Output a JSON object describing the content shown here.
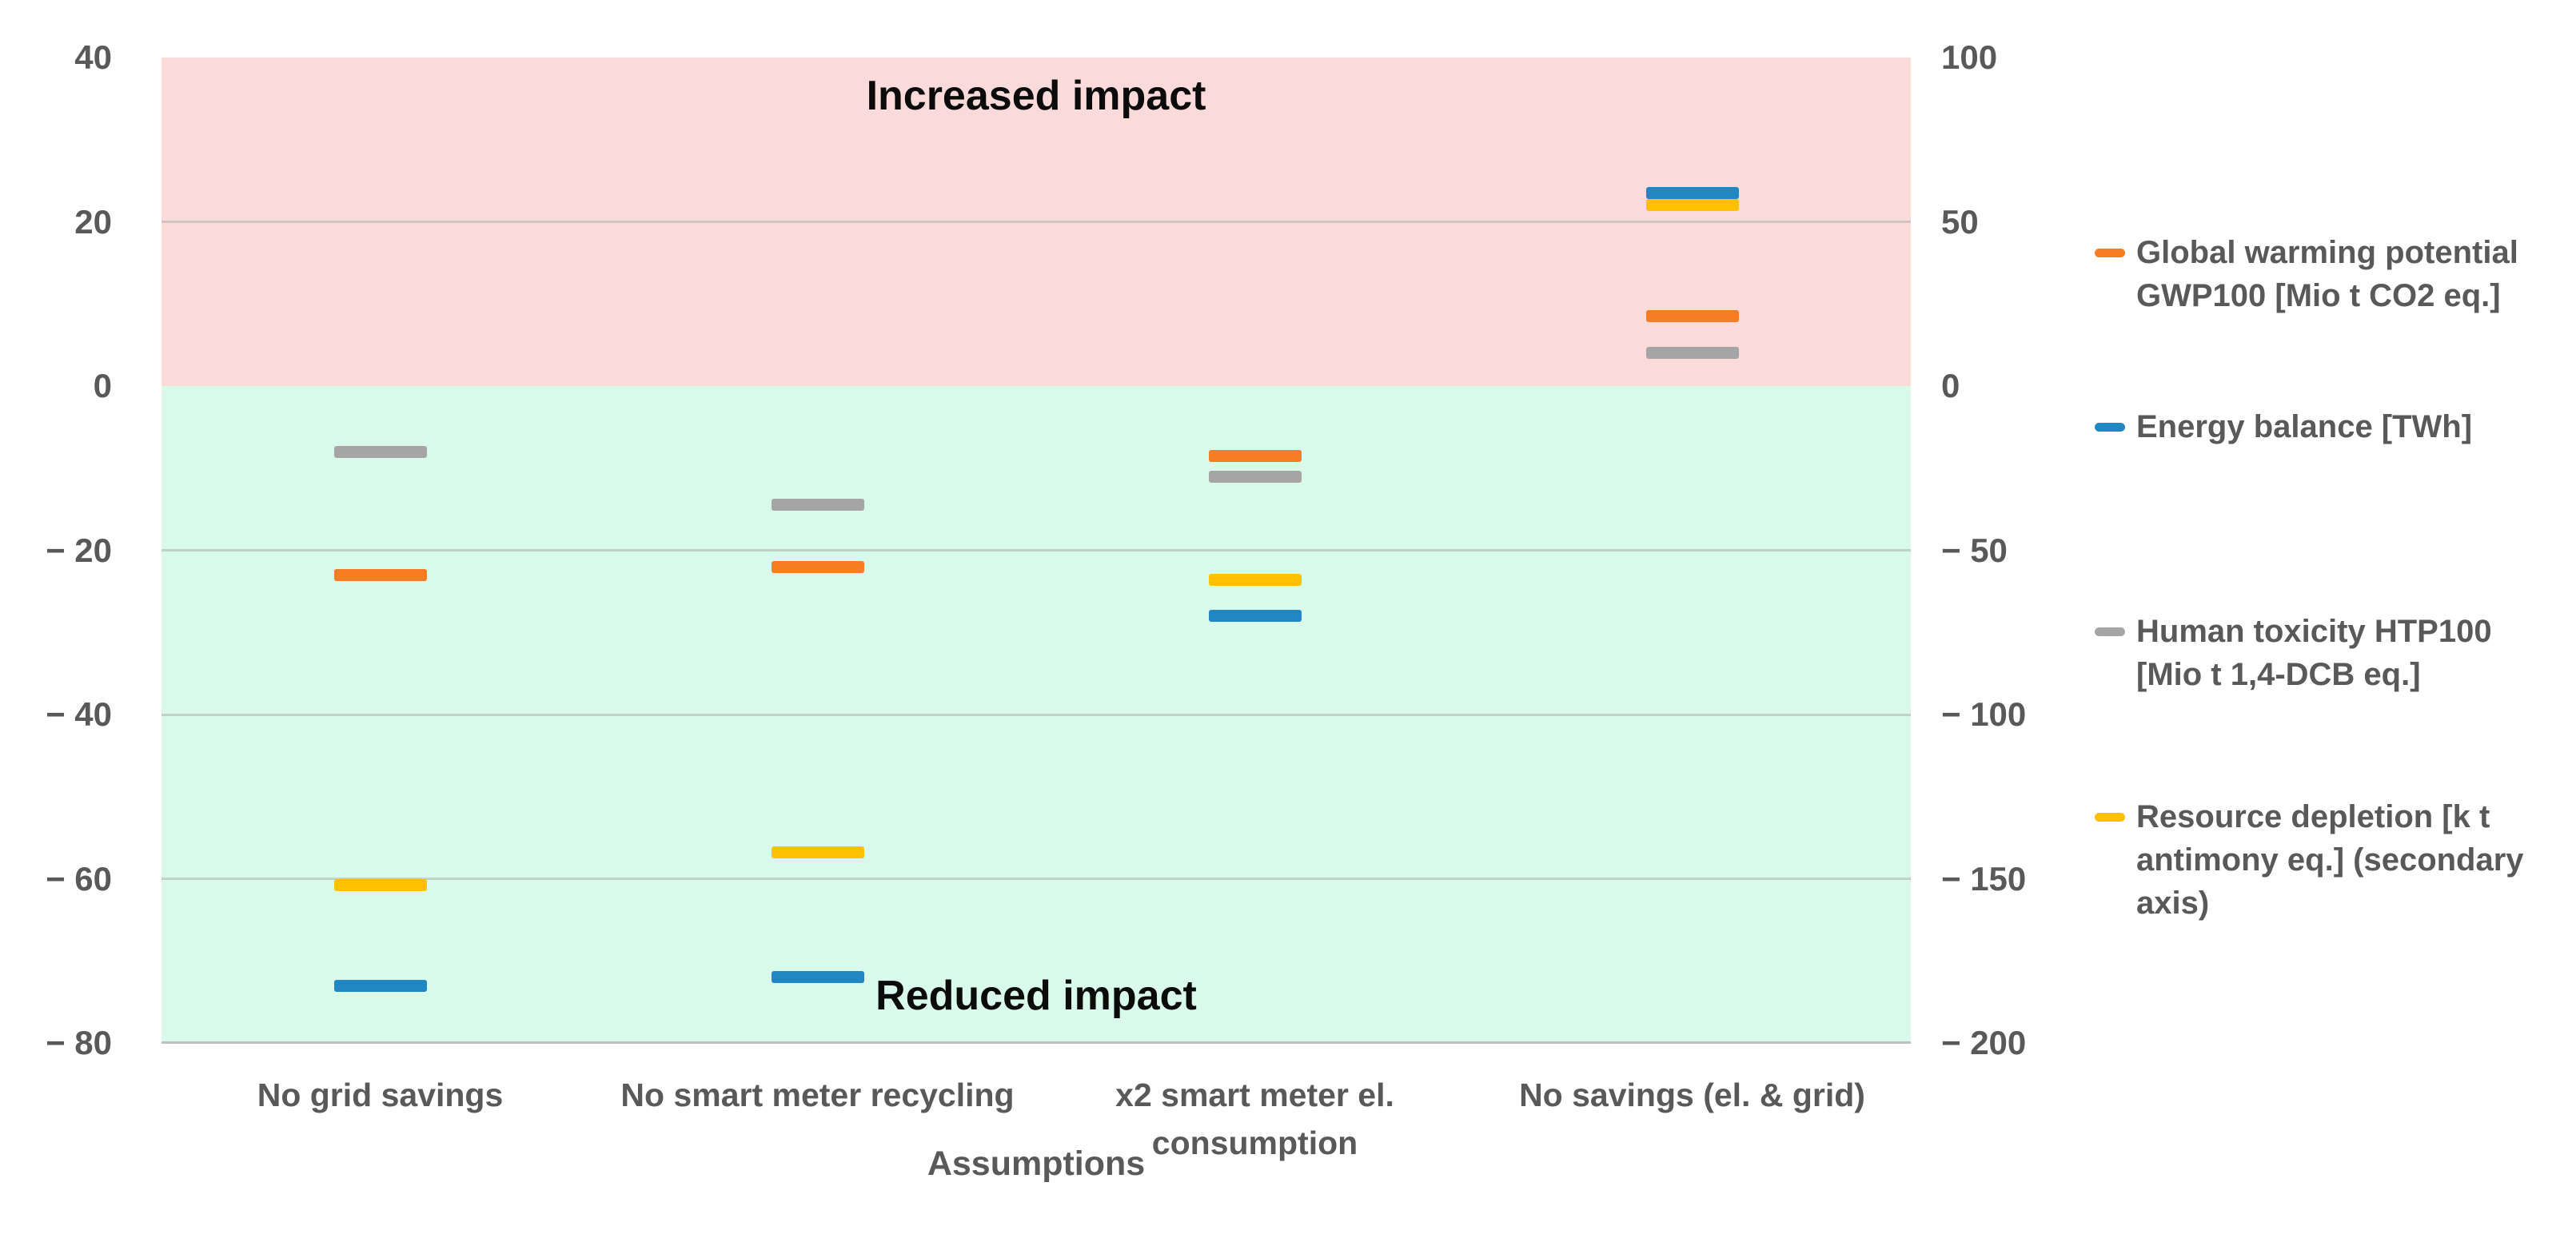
{
  "chart_data": {
    "type": "scatter",
    "marker_style": "horizontal-dash",
    "categories": [
      {
        "lines": [
          "No grid savings"
        ]
      },
      {
        "lines": [
          "No smart meter recycling"
        ]
      },
      {
        "lines": [
          "x2 smart meter el.",
          "consumption"
        ]
      },
      {
        "lines": [
          "No savings (el. & grid)"
        ]
      }
    ],
    "x_axis_title": "Assumptions",
    "primary_axis": {
      "min": -80,
      "max": 40,
      "ticks": [
        {
          "value": 40,
          "label": "40"
        },
        {
          "value": 20,
          "label": "20"
        },
        {
          "value": 0,
          "label": "0"
        },
        {
          "value": -20,
          "label": "− 20"
        },
        {
          "value": -40,
          "label": "− 40"
        },
        {
          "value": -60,
          "label": "− 60"
        },
        {
          "value": -80,
          "label": "− 80"
        }
      ]
    },
    "secondary_axis": {
      "min": -200,
      "max": 100,
      "ticks": [
        {
          "value": 100,
          "label": "100"
        },
        {
          "value": 50,
          "label": "50"
        },
        {
          "value": 0,
          "label": "0"
        },
        {
          "value": -50,
          "label": "− 50"
        },
        {
          "value": -100,
          "label": "− 100"
        },
        {
          "value": -150,
          "label": "− 150"
        },
        {
          "value": -200,
          "label": "− 200"
        }
      ]
    },
    "gridline_values_primary": [
      20,
      -20,
      -40,
      -60
    ],
    "series": [
      {
        "name": "Human toxicity HTP100 [Mio t 1,4-DCB eq.]",
        "legend_lines": [
          "Human toxicity HTP100",
          "[Mio t 1,4-DCB eq.]"
        ],
        "key": "human-toxicity",
        "color": "#a5a5a5",
        "axis": "primary",
        "z": 1,
        "values": [
          -8,
          -14.5,
          -11,
          4
        ]
      },
      {
        "name": "Resource depletion [k t antimony eq.] (secondary axis)",
        "legend_lines": [
          "Resource depletion [k t",
          "antimony eq.] (secondary",
          "axis)"
        ],
        "key": "resource-depletion",
        "color": "#fec000",
        "axis": "secondary",
        "z": 2,
        "values": [
          -152,
          -142,
          -59,
          55
        ]
      },
      {
        "name": "Global warming potential GWP100 [Mio t CO2 eq.]",
        "legend_lines": [
          "Global warming potential",
          "GWP100 [Mio t CO2 eq.]"
        ],
        "key": "global-warming-potential",
        "color": "#f87c23",
        "axis": "primary",
        "z": 3,
        "values": [
          -23,
          -22,
          -8.5,
          8.5
        ]
      },
      {
        "name": "Energy balance [TWh]",
        "legend_lines": [
          "Energy balance [TWh]"
        ],
        "key": "energy-balance",
        "color": "#2187c3",
        "axis": "primary",
        "z": 4,
        "values": [
          -73,
          -72,
          -28,
          23.5
        ]
      }
    ],
    "legend_order": [
      "global-warming-potential",
      "energy-balance",
      "human-toxicity",
      "resource-depletion"
    ],
    "annotations": {
      "increased": "Increased impact",
      "reduced": "Reduced impact"
    }
  },
  "colors": {
    "increased_region": "#fbdbda",
    "reduced_region": "#d9f9ea",
    "gridline": "rgba(160,165,162,0.45)",
    "axis_line": "#bfbfbf",
    "axis_text": "#595959",
    "annotation_text": "#0b0b0b"
  }
}
